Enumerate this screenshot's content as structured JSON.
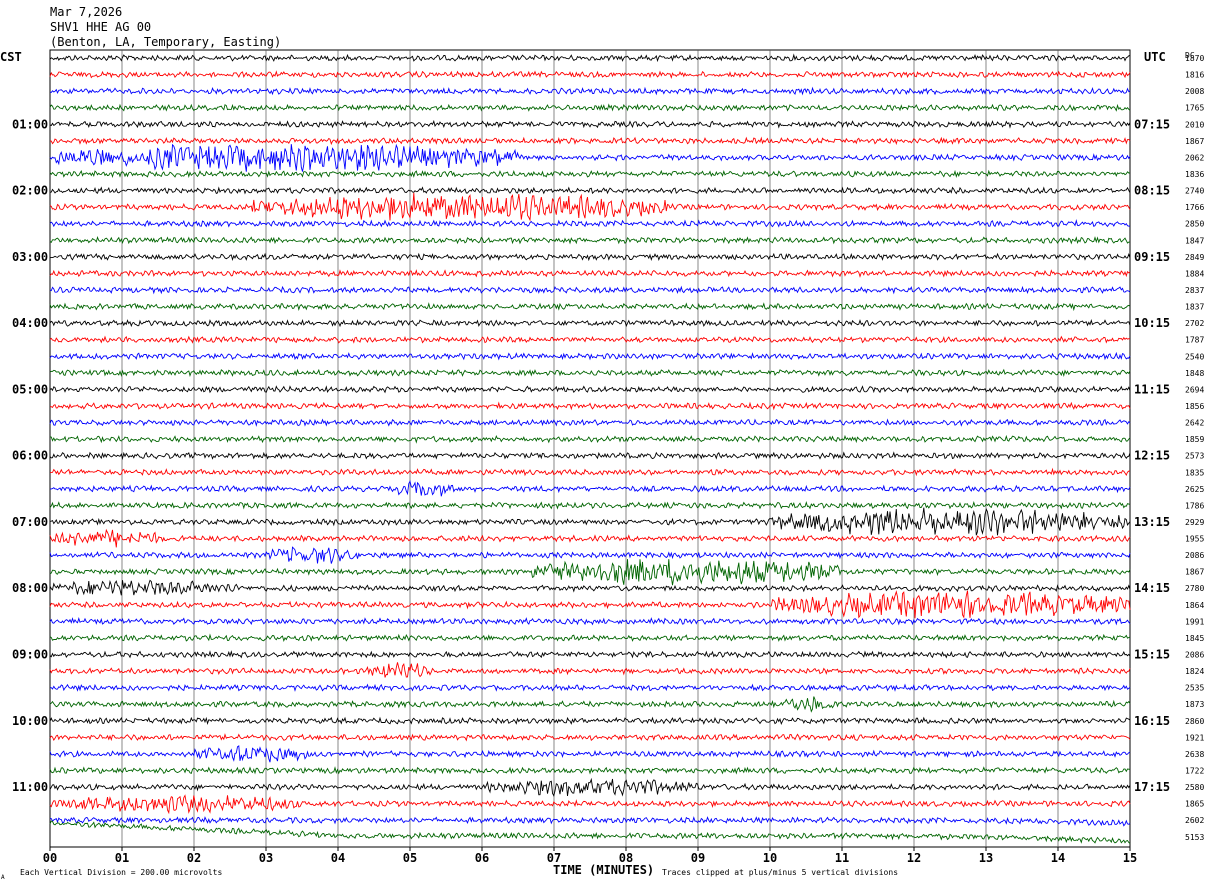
{
  "header": {
    "date": "Mar 7,2026",
    "station": "SHV1 HHE AG 00",
    "location": "(Benton, LA, Temporary, Easting)"
  },
  "labels": {
    "left_tz": "CST",
    "right_tz": "UTC",
    "dc": "DC",
    "xlabel": "TIME (MINUTES)",
    "scale_note": "Each Vertical Division =  200.00 microvolts",
    "clip_note": "Traces clipped at plus/minus 5 vertical divisions",
    "corner_mark": "A"
  },
  "chart_data": {
    "type": "line",
    "plot": "helicorder",
    "xlabel": "TIME (MINUTES)",
    "xlim": [
      0,
      15
    ],
    "x_ticks": [
      "00",
      "01",
      "02",
      "03",
      "04",
      "05",
      "06",
      "07",
      "08",
      "09",
      "10",
      "11",
      "12",
      "13",
      "14",
      "15"
    ],
    "rows_per_hour": 4,
    "row_count": 48,
    "row_colors": [
      "#000000",
      "#ff0000",
      "#0000ff",
      "#006400"
    ],
    "left_hour_labels": [
      "01:00",
      "02:00",
      "03:00",
      "04:00",
      "05:00",
      "06:00",
      "07:00",
      "08:00",
      "09:00",
      "10:00",
      "11:00"
    ],
    "right_hour_labels": [
      "07:15",
      "08:15",
      "09:15",
      "10:15",
      "11:15",
      "12:15",
      "13:15",
      "14:15",
      "15:15",
      "16:15",
      "17:15"
    ],
    "hour_label_first_row": 4,
    "dc_offsets": [
      "1870",
      "1816",
      "2008",
      "1765",
      "2010",
      "1867",
      "2062",
      "1836",
      "2740",
      "1766",
      "2850",
      "1847",
      "2849",
      "1884",
      "2837",
      "1837",
      "2702",
      "1787",
      "2540",
      "1848",
      "2694",
      "1856",
      "2642",
      "1859",
      "2573",
      "1835",
      "2625",
      "1786",
      "2929",
      "1955",
      "2086",
      "1867",
      "2780",
      "1864",
      "1991",
      "1845",
      "2086",
      "1824",
      "2535",
      "1873",
      "2860",
      "1921",
      "2638",
      "1722",
      "2580",
      "1865",
      "2602",
      "5153"
    ],
    "events": [
      {
        "row": 6,
        "start_min": 0.0,
        "end_min": 6.5,
        "level": "strong"
      },
      {
        "row": 9,
        "start_min": 2.8,
        "end_min": 8.6,
        "level": "strong"
      },
      {
        "row": 26,
        "start_min": 4.8,
        "end_min": 5.6,
        "level": "moderate"
      },
      {
        "row": 28,
        "start_min": 10.0,
        "end_min": 15.0,
        "level": "strong"
      },
      {
        "row": 29,
        "start_min": 0.0,
        "end_min": 1.6,
        "level": "moderate"
      },
      {
        "row": 30,
        "start_min": 3.0,
        "end_min": 4.3,
        "level": "moderate"
      },
      {
        "row": 31,
        "start_min": 6.7,
        "end_min": 11.0,
        "level": "strong"
      },
      {
        "row": 32,
        "start_min": 0.0,
        "end_min": 2.6,
        "level": "moderate"
      },
      {
        "row": 33,
        "start_min": 10.0,
        "end_min": 15.0,
        "level": "strong"
      },
      {
        "row": 37,
        "start_min": 4.4,
        "end_min": 5.3,
        "level": "moderate"
      },
      {
        "row": 39,
        "start_min": 10.2,
        "end_min": 10.9,
        "level": "moderate"
      },
      {
        "row": 42,
        "start_min": 2.0,
        "end_min": 3.6,
        "level": "moderate"
      },
      {
        "row": 44,
        "start_min": 6.0,
        "end_min": 9.0,
        "level": "moderate"
      },
      {
        "row": 45,
        "start_min": 0.0,
        "end_min": 3.5,
        "level": "moderate"
      }
    ]
  }
}
